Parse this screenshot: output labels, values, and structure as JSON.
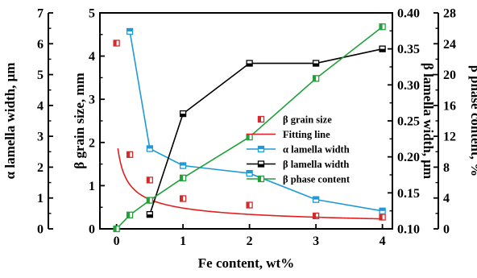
{
  "chart_data": {
    "type": "line",
    "xlabel": "Fe content, wt%",
    "x_ticks": [
      0,
      1,
      2,
      3,
      4
    ],
    "xlim": [
      -0.25,
      4.15
    ],
    "axes": {
      "alpha_width": {
        "label": "α lamella width, μm",
        "range": [
          0,
          7
        ],
        "ticks": [
          0,
          1,
          2,
          3,
          4,
          5,
          6,
          7
        ],
        "position": "left-outer",
        "color": "#000000"
      },
      "beta_grain": {
        "label": "β grain size, mm",
        "range": [
          0,
          5
        ],
        "ticks": [
          0,
          1,
          2,
          3,
          4,
          5
        ],
        "position": "left-inner",
        "color": "#000000"
      },
      "beta_width": {
        "label": "β lamella width, μm",
        "range": [
          0.1,
          0.4
        ],
        "ticks": [
          "0.10",
          "0.15",
          "0.20",
          "0.25",
          "0.30",
          "0.35",
          "0.40"
        ],
        "position": "right-inner",
        "color": "#000000"
      },
      "beta_phase": {
        "label": "β phase content, %",
        "range": [
          0,
          28
        ],
        "ticks": [
          0,
          4,
          8,
          12,
          16,
          20,
          24,
          28
        ],
        "position": "right-outer",
        "color": "#000000"
      }
    },
    "series": [
      {
        "key": "beta_grain_size",
        "name": "β grain size",
        "axis": "beta_grain",
        "style": "markers",
        "color": "#d42a2a",
        "x": [
          0,
          0.2,
          0.5,
          1,
          2,
          3,
          4
        ],
        "y": [
          4.3,
          1.72,
          1.13,
          0.7,
          0.55,
          0.3,
          0.27
        ]
      },
      {
        "key": "fitting_line",
        "name": "Fitting line",
        "axis": "beta_grain",
        "style": "curve",
        "color": "#e02020",
        "fit": {
          "a": 0.5,
          "b": 0.0714,
          "c": -0.55,
          "x_start": 0.02,
          "x_end": 4.0
        }
      },
      {
        "key": "alpha_lamella_width",
        "name": "α lamella width",
        "axis": "alpha_width",
        "style": "line-markers",
        "color": "#1f9ad6",
        "x": [
          0.2,
          0.5,
          1,
          2,
          3,
          4
        ],
        "y": [
          6.4,
          2.6,
          2.05,
          1.8,
          0.95,
          0.58
        ]
      },
      {
        "key": "beta_lamella_width",
        "name": "β lamella width",
        "axis": "beta_width",
        "style": "line-markers",
        "color": "#000000",
        "x": [
          0.5,
          1,
          2,
          3,
          4
        ],
        "y": [
          0.12,
          0.26,
          0.33,
          0.33,
          0.35
        ]
      },
      {
        "key": "beta_phase_content",
        "name": "β phase content",
        "axis": "beta_phase",
        "style": "line-markers",
        "color": "#22a03a",
        "x": [
          0,
          0.2,
          0.5,
          1,
          2,
          3,
          4
        ],
        "y": [
          0,
          1.8,
          3.7,
          6.6,
          11.9,
          19.5,
          26.2
        ]
      }
    ],
    "legend": {
      "placement": "center-right",
      "entries": [
        {
          "key": "beta_grain_size",
          "label": "β grain size"
        },
        {
          "key": "fitting_line",
          "label": "Fitting line"
        },
        {
          "key": "alpha_lamella_width",
          "label": "α lamella width"
        },
        {
          "key": "beta_lamella_width",
          "label": "β lamella width"
        },
        {
          "key": "beta_phase_content",
          "label": "β phase content"
        }
      ]
    }
  }
}
